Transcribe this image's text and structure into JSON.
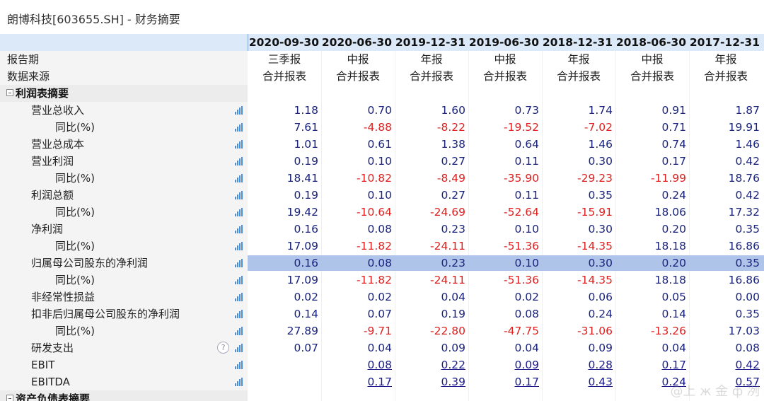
{
  "title": "朗博科技[603655.SH] - 财务摘要",
  "colors": {
    "header_bg": "#dce9f8",
    "positive": "#1a237e",
    "negative": "#e02020",
    "highlight": "#aec4e8"
  },
  "dates": [
    "2020-09-30",
    "2020-06-30",
    "2019-12-31",
    "2019-06-30",
    "2018-12-31",
    "2018-06-30",
    "2017-12-31"
  ],
  "rows": [
    {
      "type": "text",
      "label": "报告期",
      "values": [
        "三季报",
        "中报",
        "年报",
        "中报",
        "年报",
        "中报",
        "年报"
      ]
    },
    {
      "type": "text",
      "label": "数据来源",
      "values": [
        "合并报表",
        "合并报表",
        "合并报表",
        "合并报表",
        "合并报表",
        "合并报表",
        "合并报表"
      ]
    },
    {
      "type": "section",
      "label": "利润表摘要"
    },
    {
      "label": "营业总收入",
      "indent": 1,
      "values": [
        "1.18",
        "0.70",
        "1.60",
        "0.73",
        "1.74",
        "0.91",
        "1.87"
      ]
    },
    {
      "label": "同比(%)",
      "indent": 2,
      "values": [
        "7.61",
        "-4.88",
        "-8.22",
        "-19.52",
        "-7.02",
        "0.71",
        "19.91"
      ]
    },
    {
      "label": "营业总成本",
      "indent": 1,
      "values": [
        "1.01",
        "0.61",
        "1.38",
        "0.64",
        "1.46",
        "0.74",
        "1.46"
      ]
    },
    {
      "label": "营业利润",
      "indent": 1,
      "values": [
        "0.19",
        "0.10",
        "0.27",
        "0.11",
        "0.30",
        "0.17",
        "0.42"
      ]
    },
    {
      "label": "同比(%)",
      "indent": 2,
      "values": [
        "18.41",
        "-10.82",
        "-8.49",
        "-35.90",
        "-29.23",
        "-11.99",
        "18.76"
      ]
    },
    {
      "label": "利润总额",
      "indent": 1,
      "values": [
        "0.19",
        "0.10",
        "0.27",
        "0.11",
        "0.35",
        "0.24",
        "0.42"
      ]
    },
    {
      "label": "同比(%)",
      "indent": 2,
      "values": [
        "19.42",
        "-10.64",
        "-24.69",
        "-52.64",
        "-15.91",
        "18.06",
        "17.32"
      ]
    },
    {
      "label": "净利润",
      "indent": 1,
      "values": [
        "0.16",
        "0.08",
        "0.23",
        "0.10",
        "0.30",
        "0.20",
        "0.35"
      ]
    },
    {
      "label": "同比(%)",
      "indent": 2,
      "values": [
        "17.09",
        "-11.82",
        "-24.11",
        "-51.36",
        "-14.35",
        "18.18",
        "16.86"
      ]
    },
    {
      "label": "归属母公司股东的净利润",
      "indent": 1,
      "highlight": true,
      "values": [
        "0.16",
        "0.08",
        "0.23",
        "0.10",
        "0.30",
        "0.20",
        "0.35"
      ]
    },
    {
      "label": "同比(%)",
      "indent": 2,
      "values": [
        "17.09",
        "-11.82",
        "-24.11",
        "-51.36",
        "-14.35",
        "18.18",
        "16.86"
      ]
    },
    {
      "label": "非经常性损益",
      "indent": 1,
      "values": [
        "0.02",
        "0.02",
        "0.04",
        "0.02",
        "0.06",
        "0.05",
        "0.00"
      ]
    },
    {
      "label": "扣非后归属母公司股东的净利润",
      "indent": 1,
      "values": [
        "0.14",
        "0.07",
        "0.19",
        "0.08",
        "0.24",
        "0.14",
        "0.35"
      ]
    },
    {
      "label": "同比(%)",
      "indent": 2,
      "values": [
        "27.89",
        "-9.71",
        "-22.80",
        "-47.75",
        "-31.06",
        "-13.26",
        "17.03"
      ]
    },
    {
      "label": "研发支出",
      "indent": 1,
      "help": true,
      "values": [
        "0.07",
        "0.04",
        "0.09",
        "0.04",
        "0.09",
        "0.04",
        "0.08"
      ]
    },
    {
      "label": "EBIT",
      "indent": 1,
      "link": true,
      "values": [
        "",
        "0.08",
        "0.22",
        "0.09",
        "0.28",
        "0.17",
        "0.42"
      ]
    },
    {
      "label": "EBITDA",
      "indent": 1,
      "link": true,
      "values": [
        "",
        "0.17",
        "0.39",
        "0.17",
        "0.43",
        "0.24",
        "0.57"
      ]
    },
    {
      "type": "section",
      "label": "资产负债表摘要"
    }
  ],
  "help_glyph": "?",
  "chart_icon": "bar-chart-icon",
  "watermark_text": "@上 ж 金 ф 冽 "
}
